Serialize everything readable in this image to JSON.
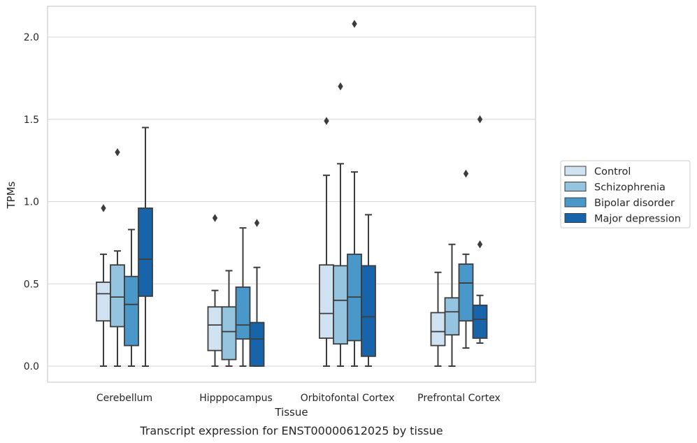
{
  "caption": "Transcript expression for ENST00000612025 by tissue",
  "chart_data": {
    "type": "box",
    "title": "",
    "xlabel": "Tissue",
    "ylabel": "TPMs",
    "ylim": [
      -0.1,
      2.2
    ],
    "yticks": [
      0.0,
      0.5,
      1.0,
      1.5,
      2.0
    ],
    "ytick_labels": [
      "0.0",
      "0.5",
      "1.0",
      "1.5",
      "2.0"
    ],
    "grid": true,
    "legend_position": "right",
    "categories": [
      "Cerebellum",
      "Hipppocampus",
      "Orbitofontal Cortex",
      "Prefrontal Cortex"
    ],
    "series": [
      {
        "name": "Control",
        "color": "#d0e1f2",
        "boxes": [
          {
            "whislo": 0.0,
            "q1": 0.275,
            "med": 0.44,
            "q3": 0.51,
            "whishi": 0.68,
            "fliers": [
              0.96
            ]
          },
          {
            "whislo": 0.0,
            "q1": 0.095,
            "med": 0.25,
            "q3": 0.36,
            "whishi": 0.46,
            "fliers": [
              0.9
            ]
          },
          {
            "whislo": 0.0,
            "q1": 0.17,
            "med": 0.32,
            "q3": 0.615,
            "whishi": 1.16,
            "fliers": [
              1.49
            ]
          },
          {
            "whislo": 0.0,
            "q1": 0.125,
            "med": 0.21,
            "q3": 0.325,
            "whishi": 0.57,
            "fliers": []
          }
        ]
      },
      {
        "name": "Schizophrenia",
        "color": "#94c4df",
        "boxes": [
          {
            "whislo": 0.0,
            "q1": 0.24,
            "med": 0.42,
            "q3": 0.615,
            "whishi": 0.7,
            "fliers": [
              1.3
            ]
          },
          {
            "whislo": 0.0,
            "q1": 0.04,
            "med": 0.21,
            "q3": 0.36,
            "whishi": 0.58,
            "fliers": []
          },
          {
            "whislo": 0.0,
            "q1": 0.135,
            "med": 0.4,
            "q3": 0.61,
            "whishi": 1.23,
            "fliers": [
              1.7
            ]
          },
          {
            "whislo": 0.0,
            "q1": 0.19,
            "med": 0.33,
            "q3": 0.415,
            "whishi": 0.74,
            "fliers": []
          }
        ]
      },
      {
        "name": "Bipolar disorder",
        "color": "#4a98c9",
        "boxes": [
          {
            "whislo": 0.0,
            "q1": 0.125,
            "med": 0.375,
            "q3": 0.545,
            "whishi": 0.83,
            "fliers": []
          },
          {
            "whislo": 0.0,
            "q1": 0.165,
            "med": 0.25,
            "q3": 0.48,
            "whishi": 0.84,
            "fliers": []
          },
          {
            "whislo": 0.0,
            "q1": 0.155,
            "med": 0.42,
            "q3": 0.68,
            "whishi": 1.18,
            "fliers": [
              2.08
            ]
          },
          {
            "whislo": 0.11,
            "q1": 0.275,
            "med": 0.505,
            "q3": 0.62,
            "whishi": 0.68,
            "fliers": [
              1.17
            ]
          }
        ]
      },
      {
        "name": "Major depression",
        "color": "#1764ab",
        "boxes": [
          {
            "whislo": 0.0,
            "q1": 0.425,
            "med": 0.65,
            "q3": 0.96,
            "whishi": 1.45,
            "fliers": []
          },
          {
            "whislo": 0.0,
            "q1": 0.0,
            "med": 0.165,
            "q3": 0.265,
            "whishi": 0.6,
            "fliers": [
              0.87
            ]
          },
          {
            "whislo": 0.0,
            "q1": 0.06,
            "med": 0.3,
            "q3": 0.61,
            "whishi": 0.92,
            "fliers": []
          },
          {
            "whislo": 0.14,
            "q1": 0.17,
            "med": 0.285,
            "q3": 0.37,
            "whishi": 0.43,
            "fliers": [
              0.74,
              1.5
            ]
          }
        ]
      }
    ],
    "colors": {
      "grid": "#d5d5d5",
      "frame": "#cccccc",
      "box_edge": "#3d3d3d",
      "legend_edge": "#cccccc"
    }
  }
}
